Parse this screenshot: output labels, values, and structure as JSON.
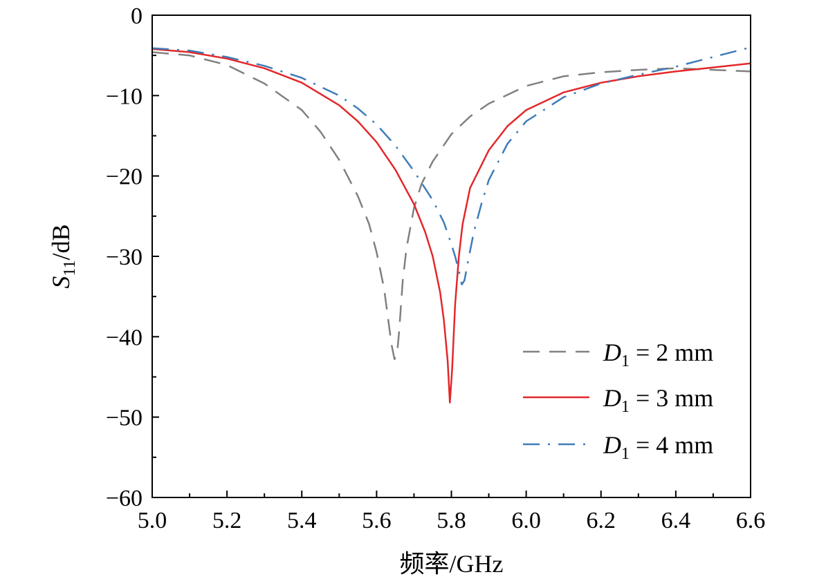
{
  "chart_data": {
    "type": "line",
    "xlabel": "频率/GHz",
    "ylabel": {
      "main": "S",
      "sub": "11",
      "unit": "/dB"
    },
    "xlim": [
      5.0,
      6.6
    ],
    "ylim": [
      -60,
      0
    ],
    "xticks": [
      5.0,
      5.2,
      5.4,
      5.6,
      5.8,
      6.0,
      6.2,
      6.4,
      6.6
    ],
    "xtick_labels": [
      "5.0",
      "5.2",
      "5.4",
      "5.6",
      "5.8",
      "6.0",
      "6.2",
      "6.4",
      "6.6"
    ],
    "yticks": [
      0,
      -10,
      -20,
      -30,
      -40,
      -50,
      -60
    ],
    "ytick_labels": [
      "0",
      "−10",
      "−20",
      "−30",
      "−40",
      "−50",
      "−60"
    ],
    "legend_position": "bottom-right",
    "series": [
      {
        "label": {
          "var": "D",
          "sub": "1",
          "rest": " = 2 mm"
        },
        "color": "#808080",
        "dash": "dashed",
        "points": [
          [
            5.0,
            -4.6
          ],
          [
            5.1,
            -5.0
          ],
          [
            5.2,
            -6.2
          ],
          [
            5.3,
            -8.5
          ],
          [
            5.4,
            -11.8
          ],
          [
            5.45,
            -14.5
          ],
          [
            5.5,
            -18.0
          ],
          [
            5.55,
            -22.5
          ],
          [
            5.58,
            -26.0
          ],
          [
            5.6,
            -29.5
          ],
          [
            5.62,
            -34.0
          ],
          [
            5.63,
            -37.5
          ],
          [
            5.64,
            -41.0
          ],
          [
            5.648,
            -42.8
          ],
          [
            5.655,
            -42.0
          ],
          [
            5.66,
            -39.5
          ],
          [
            5.67,
            -33.0
          ],
          [
            5.68,
            -29.0
          ],
          [
            5.7,
            -24.0
          ],
          [
            5.72,
            -21.0
          ],
          [
            5.75,
            -18.2
          ],
          [
            5.8,
            -14.8
          ],
          [
            5.85,
            -12.6
          ],
          [
            5.9,
            -11.0
          ],
          [
            6.0,
            -8.8
          ],
          [
            6.1,
            -7.6
          ],
          [
            6.2,
            -7.1
          ],
          [
            6.3,
            -6.8
          ],
          [
            6.4,
            -6.6
          ],
          [
            6.5,
            -6.8
          ],
          [
            6.6,
            -7.0
          ]
        ]
      },
      {
        "label": {
          "var": "D",
          "sub": "1",
          "rest": " = 3 mm"
        },
        "color": "#e3272a",
        "dash": "solid",
        "points": [
          [
            5.0,
            -4.2
          ],
          [
            5.1,
            -4.6
          ],
          [
            5.2,
            -5.4
          ],
          [
            5.3,
            -6.6
          ],
          [
            5.4,
            -8.4
          ],
          [
            5.5,
            -11.2
          ],
          [
            5.55,
            -13.2
          ],
          [
            5.6,
            -15.8
          ],
          [
            5.65,
            -19.2
          ],
          [
            5.7,
            -23.5
          ],
          [
            5.73,
            -27.0
          ],
          [
            5.75,
            -30.0
          ],
          [
            5.77,
            -34.5
          ],
          [
            5.78,
            -38.0
          ],
          [
            5.79,
            -43.0
          ],
          [
            5.796,
            -48.2
          ],
          [
            5.802,
            -44.0
          ],
          [
            5.81,
            -36.0
          ],
          [
            5.82,
            -30.0
          ],
          [
            5.83,
            -26.0
          ],
          [
            5.85,
            -21.5
          ],
          [
            5.9,
            -16.8
          ],
          [
            5.95,
            -13.8
          ],
          [
            6.0,
            -11.8
          ],
          [
            6.1,
            -9.6
          ],
          [
            6.2,
            -8.4
          ],
          [
            6.3,
            -7.6
          ],
          [
            6.4,
            -7.0
          ],
          [
            6.5,
            -6.5
          ],
          [
            6.6,
            -6.0
          ]
        ]
      },
      {
        "label": {
          "var": "D",
          "sub": "1",
          "rest": " = 4 mm"
        },
        "color": "#3e7cb8",
        "dash": "dashdot",
        "points": [
          [
            5.0,
            -4.1
          ],
          [
            5.1,
            -4.4
          ],
          [
            5.2,
            -5.2
          ],
          [
            5.3,
            -6.3
          ],
          [
            5.4,
            -7.8
          ],
          [
            5.5,
            -10.0
          ],
          [
            5.55,
            -11.6
          ],
          [
            5.6,
            -13.6
          ],
          [
            5.65,
            -16.2
          ],
          [
            5.7,
            -19.4
          ],
          [
            5.75,
            -23.0
          ],
          [
            5.78,
            -25.8
          ],
          [
            5.8,
            -28.5
          ],
          [
            5.81,
            -30.0
          ],
          [
            5.82,
            -31.8
          ],
          [
            5.828,
            -33.5
          ],
          [
            5.835,
            -33.0
          ],
          [
            5.845,
            -30.5
          ],
          [
            5.86,
            -27.0
          ],
          [
            5.88,
            -23.5
          ],
          [
            5.9,
            -20.5
          ],
          [
            5.95,
            -16.0
          ],
          [
            6.0,
            -13.2
          ],
          [
            6.1,
            -10.2
          ],
          [
            6.2,
            -8.5
          ],
          [
            6.3,
            -7.4
          ],
          [
            6.4,
            -6.4
          ],
          [
            6.5,
            -5.2
          ],
          [
            6.6,
            -4.0
          ]
        ]
      }
    ]
  }
}
